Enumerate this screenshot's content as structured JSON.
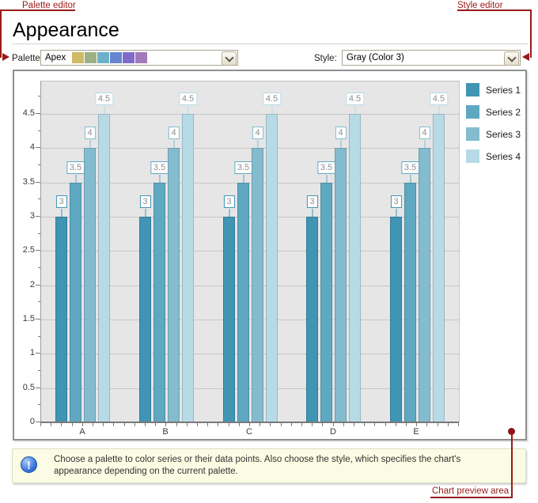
{
  "annotations": {
    "palette_editor": "Palette editor",
    "style_editor": "Style editor",
    "chart_preview": "Chart preview area",
    "color": "#9A1A1A"
  },
  "header": {
    "title": "Appearance"
  },
  "toolbar": {
    "palette_label": "Palette:",
    "palette_value": "Apex",
    "palette_swatches": [
      "#CEB966",
      "#9CB084",
      "#6BB1C9",
      "#6585CF",
      "#7E6BC9",
      "#A379BB"
    ],
    "style_label": "Style:",
    "style_value": "Gray (Color 3)"
  },
  "chart_data": {
    "type": "bar",
    "categories": [
      "A",
      "B",
      "C",
      "D",
      "E"
    ],
    "series": [
      {
        "name": "Series 1",
        "color": "#4094B4",
        "values": [
          3,
          3,
          3,
          3,
          3
        ]
      },
      {
        "name": "Series 2",
        "color": "#5FA8C2",
        "values": [
          3.5,
          3.5,
          3.5,
          3.5,
          3.5
        ]
      },
      {
        "name": "Series 3",
        "color": "#84BCCF",
        "values": [
          4,
          4,
          4,
          4,
          4
        ]
      },
      {
        "name": "Series 4",
        "color": "#B7DAE7",
        "values": [
          4.5,
          4.5,
          4.5,
          4.5,
          4.5
        ]
      }
    ],
    "ylim": [
      0,
      5
    ],
    "ytick_labels": [
      "0",
      "0.5",
      "1",
      "1.5",
      "2",
      "2.5",
      "3",
      "3.5",
      "4",
      "4.5"
    ],
    "ytick_step": 0.5,
    "grid": true,
    "legend_position": "right",
    "data_labels": true,
    "plot_background": "#E6E6E6",
    "data_label_text_color": "#8E8E8E"
  },
  "infobox": {
    "icon": "info-icon",
    "icon_glyph": "!",
    "text": "Choose a palette to color series or their data points. Also choose the style, which specifies the chart's appearance depending on the current palette."
  }
}
